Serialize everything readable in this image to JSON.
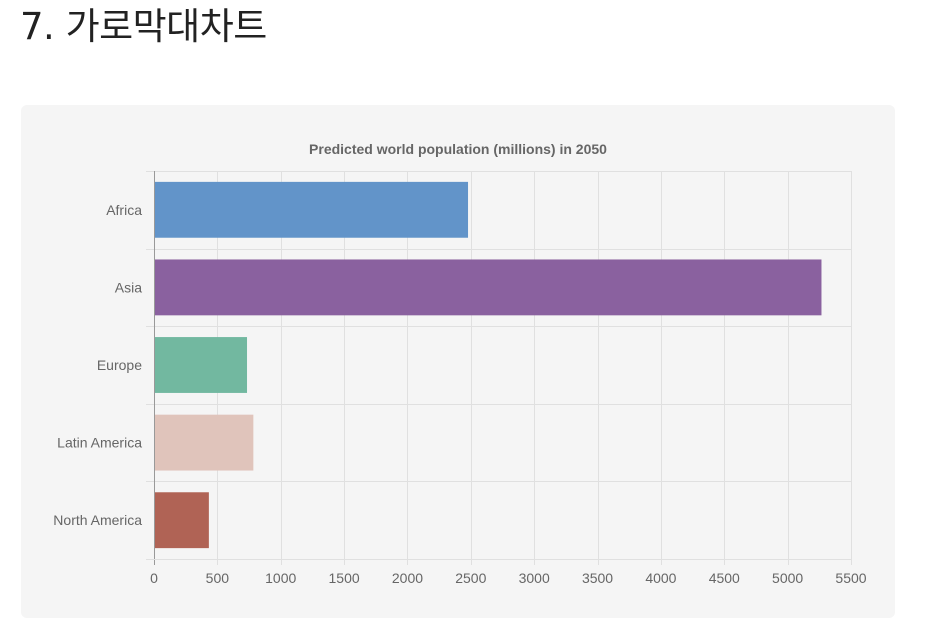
{
  "page": {
    "heading": "7. 가로막대차트"
  },
  "chart_data": {
    "type": "bar",
    "orientation": "horizontal",
    "title": "Predicted world population (millions) in 2050",
    "categories": [
      "Africa",
      "Asia",
      "Europe",
      "Latin America",
      "North America"
    ],
    "values": [
      2478,
      5267,
      734,
      784,
      433
    ],
    "colors": [
      "#6294c9",
      "#8a619f",
      "#72b8a0",
      "#e0c4bb",
      "#b06355"
    ],
    "xlim": [
      0,
      5500
    ],
    "xticks": [
      0,
      500,
      1000,
      1500,
      2000,
      2500,
      3000,
      3500,
      4000,
      4500,
      5000,
      5500
    ],
    "grid": true,
    "legend": "none"
  }
}
